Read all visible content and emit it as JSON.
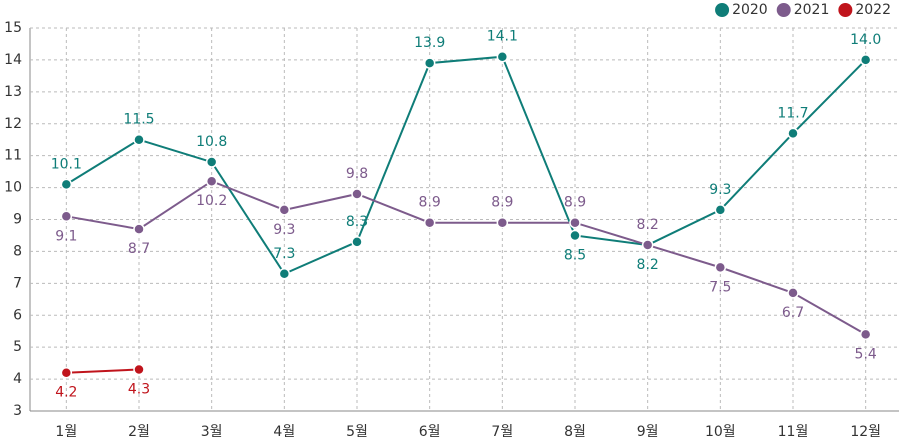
{
  "chart_data": {
    "type": "line",
    "categories": [
      "1월",
      "2월",
      "3월",
      "4월",
      "5월",
      "6월",
      "7월",
      "8월",
      "9월",
      "10월",
      "11월",
      "12월"
    ],
    "series": [
      {
        "name": "2020",
        "color": "#0f7d78",
        "values": [
          10.1,
          11.5,
          10.8,
          7.3,
          8.3,
          13.9,
          14.1,
          8.5,
          8.2,
          9.3,
          11.7,
          14.0
        ],
        "value_labels": [
          "10.1",
          "11.5",
          "10.8",
          "7.3",
          "8.3",
          "13.9",
          "14.1",
          "8.5",
          "8.2",
          "9.3",
          "11.7",
          "14.0"
        ]
      },
      {
        "name": "2021",
        "color": "#7d5b8c",
        "values": [
          9.1,
          8.7,
          10.2,
          9.3,
          9.8,
          8.9,
          8.9,
          8.9,
          8.2,
          7.5,
          6.7,
          5.4
        ]
      },
      {
        "name": "2022",
        "color": "#c0141c",
        "values": [
          4.2,
          4.3,
          null,
          null,
          null,
          null,
          null,
          null,
          null,
          null,
          null,
          null
        ]
      }
    ],
    "ylim": [
      3,
      15
    ],
    "yticks": [
      3,
      4,
      5,
      6,
      7,
      8,
      9,
      10,
      11,
      12,
      13,
      14,
      15
    ],
    "grid": true,
    "legend": "top-right"
  }
}
